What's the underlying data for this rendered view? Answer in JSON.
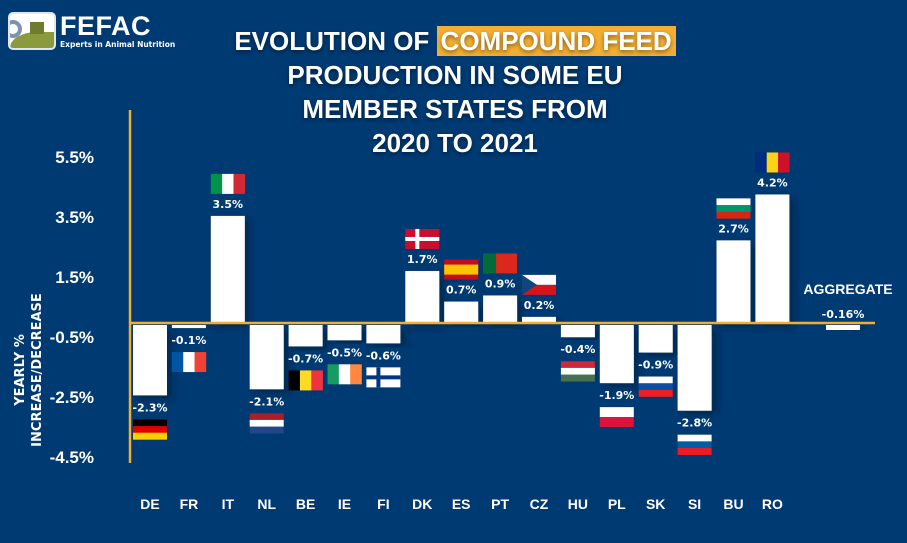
{
  "logo": {
    "name": "FEFAC",
    "tagline": "Experts in Animal Nutrition"
  },
  "title": {
    "line1_prefix": "EVOLUTION OF ",
    "line1_highlight": "COMPOUND FEED",
    "line2": "PRODUCTION IN SOME EU",
    "line3": "MEMBER STATES FROM",
    "line4": "2020 TO 2021"
  },
  "colors": {
    "background": "#003a73",
    "bar": "#ffffff",
    "axis": "#f3ae32",
    "highlight": "#f3ae32",
    "text": "#ffffff"
  },
  "chart_data": {
    "type": "bar",
    "title": "Evolution of compound feed production in some EU member states from 2020 to 2021",
    "xlabel": "",
    "ylabel_line1": "YEARLY %",
    "ylabel_line2": "INCREASE/DECREASE",
    "yticks": [
      "5.5%",
      "3.5%",
      "1.5%",
      "-0.5%",
      "-2.5%",
      "-4.5%"
    ],
    "ylim": [
      -4.5,
      5.5
    ],
    "grid": false,
    "categories": [
      "DE",
      "FR",
      "IT",
      "NL",
      "BE",
      "IE",
      "FI",
      "DK",
      "ES",
      "PT",
      "CZ",
      "HU",
      "PL",
      "SK",
      "SI",
      "BU",
      "RO"
    ],
    "values": [
      -2.3,
      -0.1,
      3.5,
      -2.1,
      -0.7,
      -0.5,
      -0.6,
      1.7,
      0.7,
      0.9,
      0.2,
      -0.4,
      -1.9,
      -0.9,
      -2.8,
      2.7,
      4.2
    ],
    "labels": [
      "-2.3%",
      "-0.1%",
      "3.5%",
      "-2.1%",
      "-0.7%",
      "-0.5%",
      "-0.6%",
      "1.7%",
      "0.7%",
      "0.9%",
      "0.2%",
      "-0.4%",
      "-1.9%",
      "-0.9%",
      "-2.8%",
      "2.7%",
      "4.2%"
    ],
    "flags": [
      "germany-flag",
      "france-flag",
      "italy-flag",
      "netherlands-flag",
      "belgium-flag",
      "ireland-flag",
      "finland-flag",
      "denmark-flag",
      "spain-flag",
      "portugal-flag",
      "czechia-flag",
      "hungary-flag",
      "poland-flag",
      "slovakia-flag",
      "slovenia-flag",
      "bulgaria-flag",
      "romania-flag"
    ],
    "aggregate": {
      "label": "AGGREGATE",
      "value": -0.16,
      "value_label": "-0.16%"
    }
  }
}
